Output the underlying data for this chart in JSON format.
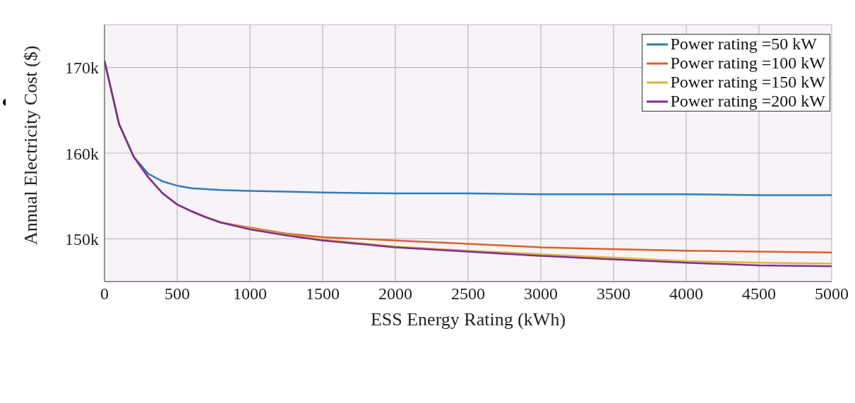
{
  "chart_data": {
    "type": "line",
    "xlabel": "ESS Energy Rating (kWh)",
    "ylabel": "Annual Electricity Cost ($)",
    "x": [
      0,
      100,
      200,
      300,
      400,
      500,
      600,
      700,
      800,
      1000,
      1250,
      1500,
      2000,
      2500,
      3000,
      3500,
      4000,
      4500,
      5000
    ],
    "series": [
      {
        "name": "Power rating =50 kW",
        "color": "#2f7bbf",
        "values": [
          170800,
          163400,
          159600,
          157600,
          156700,
          156200,
          155900,
          155800,
          155700,
          155600,
          155500,
          155400,
          155300,
          155300,
          155200,
          155200,
          155200,
          155100,
          155100
        ]
      },
      {
        "name": "Power rating =100 kW",
        "color": "#d9602e",
        "values": [
          170800,
          163400,
          159600,
          157200,
          155300,
          154000,
          153200,
          152500,
          151900,
          151300,
          150600,
          150200,
          149800,
          149400,
          149000,
          148800,
          148600,
          148500,
          148400
        ]
      },
      {
        "name": "Power rating =150 kW",
        "color": "#e0b13c",
        "values": [
          null,
          null,
          null,
          null,
          null,
          null,
          null,
          152500,
          151900,
          151200,
          150500,
          149900,
          149100,
          148600,
          148200,
          147800,
          147400,
          147200,
          147100
        ]
      },
      {
        "name": "Power rating =200 kW",
        "color": "#7e2f8e",
        "values": [
          170800,
          163400,
          159600,
          157200,
          155300,
          154000,
          153200,
          152500,
          151900,
          151100,
          150400,
          149800,
          149000,
          148500,
          148000,
          147600,
          147200,
          146900,
          146800
        ]
      }
    ],
    "xlim": [
      0,
      5000
    ],
    "xticks": [
      0,
      500,
      1000,
      1500,
      2000,
      2500,
      3000,
      3500,
      4000,
      4500,
      5000
    ],
    "ylim": [
      145000,
      175000
    ],
    "yticks": [
      {
        "value": 150000,
        "label": "150k"
      },
      {
        "value": 160000,
        "label": "160k"
      },
      {
        "value": 170000,
        "label": "170k"
      }
    ],
    "grid": true,
    "legend": "top right",
    "marker": "none",
    "line_style": "solid"
  }
}
